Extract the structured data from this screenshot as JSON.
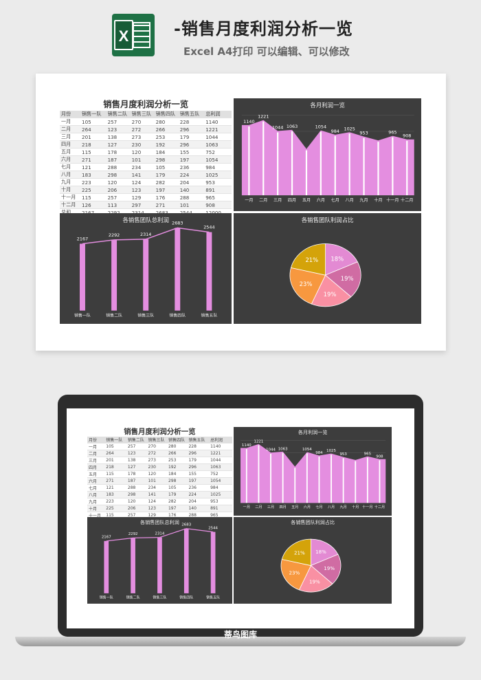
{
  "page": {
    "title": "-销售月度利润分析一览",
    "subtitle": "Excel A4打印 可以编辑、可以修改",
    "logo_icon": "excel-icon",
    "logo_letter": "X",
    "brand": "蒂鸟图库"
  },
  "dashboard": {
    "table_title": "销售月度利润分析一览",
    "columns": [
      "月份",
      "销售一队",
      "销售二队",
      "销售三队",
      "销售四队",
      "销售五队",
      "总利润"
    ],
    "rows": [
      [
        "一月",
        "105",
        "257",
        "270",
        "280",
        "228",
        "1140"
      ],
      [
        "二月",
        "264",
        "123",
        "272",
        "266",
        "296",
        "1221"
      ],
      [
        "三月",
        "201",
        "138",
        "273",
        "253",
        "179",
        "1044"
      ],
      [
        "四月",
        "218",
        "127",
        "230",
        "192",
        "296",
        "1063"
      ],
      [
        "五月",
        "115",
        "178",
        "120",
        "184",
        "155",
        "752"
      ],
      [
        "六月",
        "271",
        "187",
        "101",
        "298",
        "197",
        "1054"
      ],
      [
        "七月",
        "121",
        "288",
        "234",
        "105",
        "236",
        "984"
      ],
      [
        "八月",
        "183",
        "298",
        "141",
        "179",
        "224",
        "1025"
      ],
      [
        "九月",
        "223",
        "120",
        "124",
        "282",
        "204",
        "953"
      ],
      [
        "十月",
        "225",
        "206",
        "123",
        "197",
        "140",
        "891"
      ],
      [
        "十一月",
        "115",
        "257",
        "129",
        "176",
        "288",
        "965"
      ],
      [
        "十二月",
        "126",
        "113",
        "297",
        "271",
        "101",
        "908"
      ],
      [
        "总和",
        "2167",
        "2292",
        "2314",
        "2683",
        "2544",
        "12000"
      ]
    ],
    "colors": {
      "panel": "#3d3d3d",
      "pink": "#e48ee0",
      "pink_light": "#eaa0e4"
    }
  },
  "chart_data": [
    {
      "type": "area",
      "title": "各月利润一览",
      "categories": [
        "一月",
        "二月",
        "三月",
        "四月",
        "五月",
        "六月",
        "七月",
        "八月",
        "九月",
        "十月",
        "十一月",
        "十二月"
      ],
      "values": [
        1140,
        1221,
        1044,
        1063,
        752,
        1054,
        984,
        1025,
        953,
        891,
        965,
        908
      ],
      "labels": [
        "1140",
        "1221",
        "1044",
        "1063",
        "",
        "1054",
        "984",
        "1025",
        "953",
        "",
        "965",
        "908"
      ],
      "ylim": [
        0,
        1300
      ],
      "grid": true
    },
    {
      "type": "bar",
      "title": "各销售团队总利润",
      "categories": [
        "销售一队",
        "销售二队",
        "销售三队",
        "销售四队",
        "销售五队"
      ],
      "values": [
        2167,
        2292,
        2314,
        2683,
        2544
      ],
      "labels": [
        "2167",
        "2292",
        "2314",
        "2683",
        "2544"
      ],
      "ylim": [
        0,
        2800
      ]
    },
    {
      "type": "pie",
      "title": "各销售团队利润占比",
      "categories": [
        "销售一队",
        "销售二队",
        "销售三队",
        "销售四队",
        "销售五队"
      ],
      "values": [
        2167,
        2292,
        2314,
        2683,
        2544
      ],
      "labels": [
        "18%",
        "19%",
        "19%",
        "23%",
        "21%"
      ],
      "colors": [
        "#e38ad3",
        "#d06ca3",
        "#f990a3",
        "#f7983f",
        "#d4a30a"
      ]
    }
  ]
}
